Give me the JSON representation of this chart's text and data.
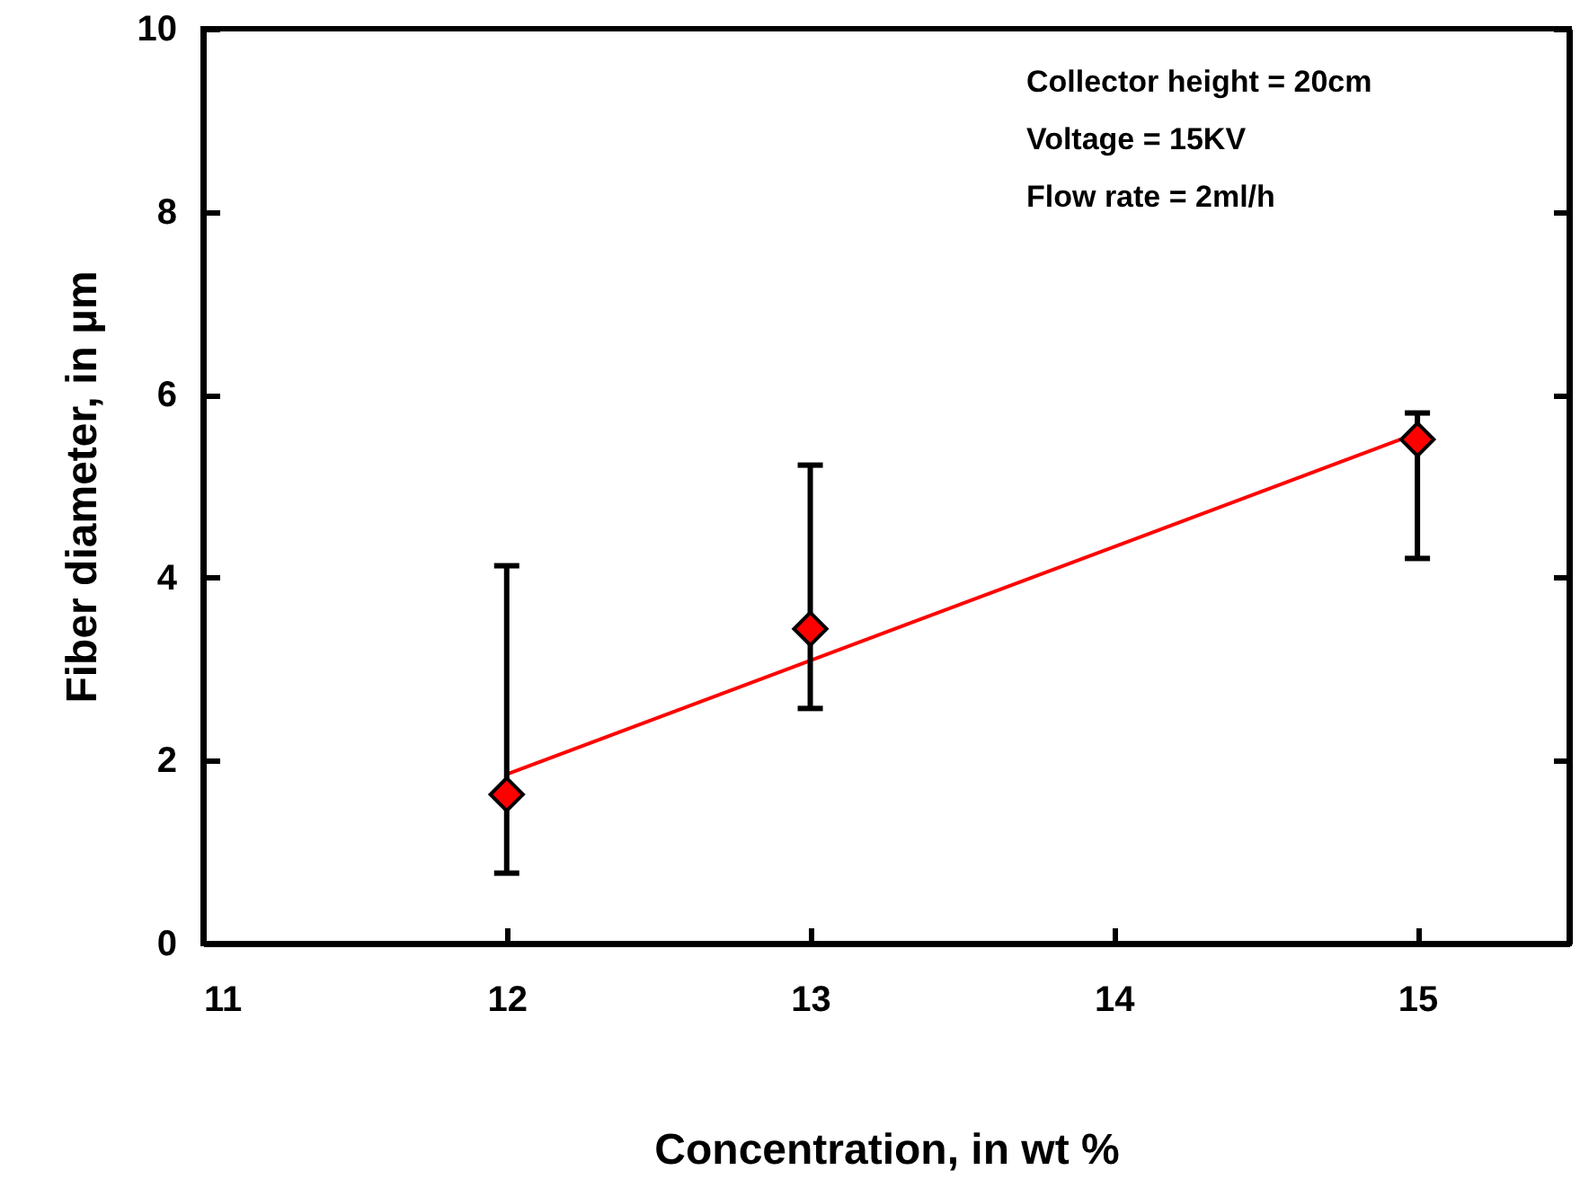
{
  "chart_data": {
    "type": "scatter",
    "xlabel": "Concentration, in wt %",
    "ylabel": "Fiber diameter, in µm",
    "annotations": [
      "Collector height = 20cm",
      "Voltage = 15KV",
      "Flow rate = 2ml/h"
    ],
    "xlim": [
      11,
      15.5
    ],
    "xticks": [
      11,
      12,
      13,
      14,
      15
    ],
    "ylim": [
      0,
      10
    ],
    "yticks": [
      0,
      2,
      4,
      6,
      8,
      10
    ],
    "grid": false,
    "marker": "diamond",
    "series": [
      {
        "type": "scatter",
        "color": "#ff0000",
        "x": [
          12,
          13,
          15
        ],
        "values": [
          1.63,
          3.44,
          5.51
        ],
        "errors": [
          [
            0.77,
            4.13
          ],
          [
            2.57,
            5.23
          ],
          [
            4.21,
            5.8
          ]
        ]
      },
      {
        "type": "line",
        "color": "#ff0000",
        "marker": "none",
        "x": [
          12,
          15
        ],
        "values": [
          1.85,
          5.58
        ]
      }
    ]
  }
}
